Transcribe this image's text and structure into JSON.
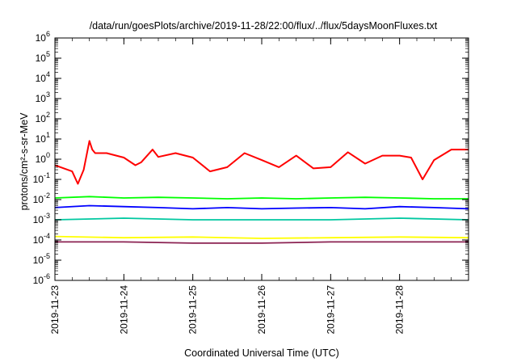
{
  "chart_data": {
    "type": "line",
    "title": "/data/run/goesPlots/archive/2019-11-28/22:00/flux/../flux/5daysMoonFluxes.txt",
    "xlabel": "Coordinated Universal Time (UTC)",
    "ylabel": "protons/cm²-s-sr-MeV",
    "y_scale": "log",
    "ylim": [
      1e-06,
      1000000.0
    ],
    "x_range_days": [
      "2019-11-23",
      "2019-11-29"
    ],
    "x_ticks": [
      "2019-11-23",
      "2019-11-24",
      "2019-11-25",
      "2019-11-26",
      "2019-11-27",
      "2019-11-28"
    ],
    "y_ticks": [
      {
        "base": "10",
        "exp": "-6"
      },
      {
        "base": "10",
        "exp": "-5"
      },
      {
        "base": "10",
        "exp": "-4"
      },
      {
        "base": "10",
        "exp": "-3"
      },
      {
        "base": "10",
        "exp": "-2"
      },
      {
        "base": "10",
        "exp": "-1"
      },
      {
        "base": "10",
        "exp": "0"
      },
      {
        "base": "10",
        "exp": "1"
      },
      {
        "base": "10",
        "exp": "2"
      },
      {
        "base": "10",
        "exp": "3"
      },
      {
        "base": "10",
        "exp": "4"
      },
      {
        "base": "10",
        "exp": "5"
      },
      {
        "base": "10",
        "exp": "6"
      }
    ],
    "grid": false,
    "series": [
      {
        "color": "#ff0000",
        "x": [
          "2019-11-23T00:00",
          "2019-11-23T06:00",
          "2019-11-23T08:00",
          "2019-11-23T10:00",
          "2019-11-23T12:00",
          "2019-11-23T13:00",
          "2019-11-23T14:00",
          "2019-11-23T18:00",
          "2019-11-24T00:00",
          "2019-11-24T04:00",
          "2019-11-24T06:00",
          "2019-11-24T10:00",
          "2019-11-24T12:00",
          "2019-11-24T18:00",
          "2019-11-25T00:00",
          "2019-11-25T06:00",
          "2019-11-25T12:00",
          "2019-11-25T18:00",
          "2019-11-26T00:00",
          "2019-11-26T06:00",
          "2019-11-26T12:00",
          "2019-11-26T18:00",
          "2019-11-27T00:00",
          "2019-11-27T06:00",
          "2019-11-27T12:00",
          "2019-11-27T18:00",
          "2019-11-28T00:00",
          "2019-11-28T04:00",
          "2019-11-28T08:00",
          "2019-11-28T12:00",
          "2019-11-28T18:00",
          "2019-11-29T00:00"
        ],
        "y": [
          0.5,
          0.25,
          0.06,
          0.3,
          8,
          3,
          2,
          2,
          1.2,
          0.5,
          0.7,
          3,
          1.3,
          2,
          1.2,
          0.25,
          0.4,
          2,
          0.9,
          0.4,
          1.5,
          0.35,
          0.4,
          2.2,
          0.6,
          1.5,
          1.5,
          1.2,
          0.1,
          0.9,
          3,
          3
        ]
      },
      {
        "color": "#00ff00",
        "x": [
          "2019-11-23T00:00",
          "2019-11-23T12:00",
          "2019-11-24T00:00",
          "2019-11-24T12:00",
          "2019-11-25T00:00",
          "2019-11-25T12:00",
          "2019-11-26T00:00",
          "2019-11-26T12:00",
          "2019-11-27T00:00",
          "2019-11-27T12:00",
          "2019-11-28T00:00",
          "2019-11-28T12:00",
          "2019-11-29T00:00"
        ],
        "y": [
          0.012,
          0.014,
          0.012,
          0.013,
          0.012,
          0.011,
          0.012,
          0.011,
          0.012,
          0.013,
          0.012,
          0.011,
          0.011
        ]
      },
      {
        "color": "#0000ff",
        "x": [
          "2019-11-23T00:00",
          "2019-11-23T12:00",
          "2019-11-24T00:00",
          "2019-11-24T12:00",
          "2019-11-25T00:00",
          "2019-11-25T12:00",
          "2019-11-26T00:00",
          "2019-11-26T12:00",
          "2019-11-27T00:00",
          "2019-11-27T12:00",
          "2019-11-28T00:00",
          "2019-11-28T12:00",
          "2019-11-29T00:00"
        ],
        "y": [
          0.004,
          0.005,
          0.0045,
          0.004,
          0.0035,
          0.004,
          0.0035,
          0.0038,
          0.004,
          0.0035,
          0.0045,
          0.004,
          0.0035
        ]
      },
      {
        "color": "#00c8a0",
        "x": [
          "2019-11-23T00:00",
          "2019-11-24T00:00",
          "2019-11-25T00:00",
          "2019-11-26T00:00",
          "2019-11-27T00:00",
          "2019-11-28T00:00",
          "2019-11-29T00:00"
        ],
        "y": [
          0.001,
          0.0012,
          0.001,
          0.001,
          0.001,
          0.0012,
          0.001
        ]
      },
      {
        "color": "#ffff00",
        "x": [
          "2019-11-23T00:00",
          "2019-11-24T00:00",
          "2019-11-25T00:00",
          "2019-11-26T00:00",
          "2019-11-27T00:00",
          "2019-11-28T00:00",
          "2019-11-29T00:00"
        ],
        "y": [
          0.00015,
          0.00013,
          0.00014,
          0.00012,
          0.00013,
          0.00014,
          0.00013
        ]
      },
      {
        "color": "#8b2252",
        "x": [
          "2019-11-23T00:00",
          "2019-11-24T00:00",
          "2019-11-25T00:00",
          "2019-11-26T00:00",
          "2019-11-27T00:00",
          "2019-11-28T00:00",
          "2019-11-29T00:00"
        ],
        "y": [
          8e-05,
          8e-05,
          7e-05,
          7e-05,
          8e-05,
          8e-05,
          8e-05
        ]
      }
    ]
  }
}
